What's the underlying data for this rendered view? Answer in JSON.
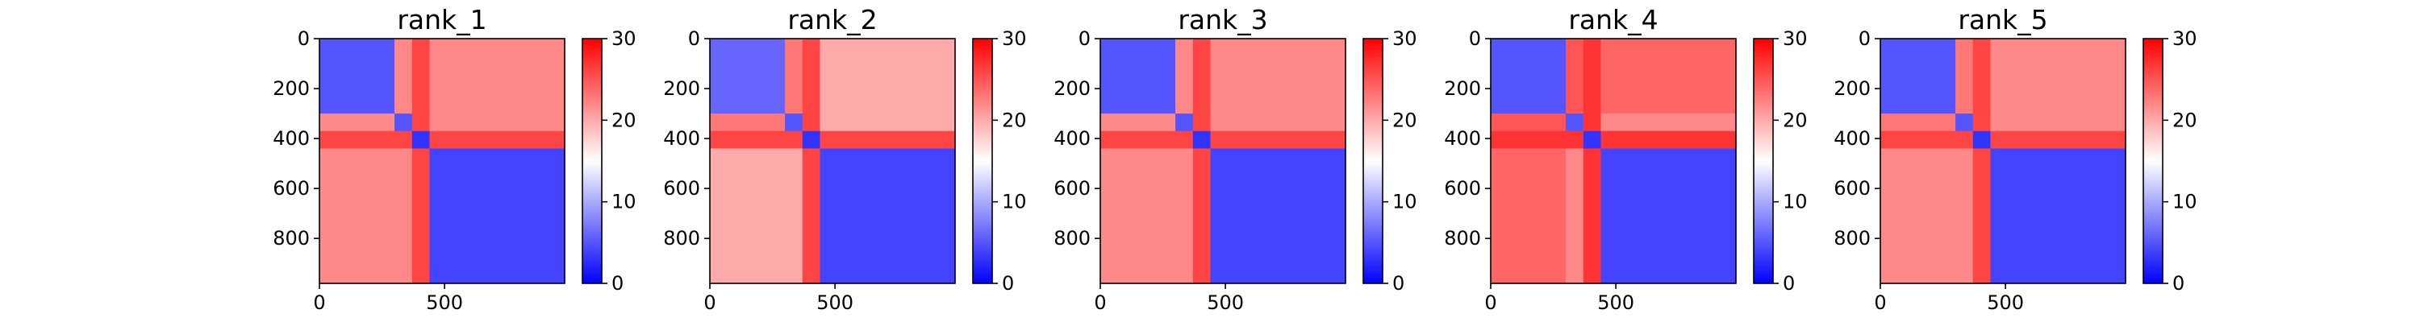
{
  "chart_data": [
    {
      "type": "heatmap",
      "title": "rank_1",
      "x_ticks": [
        "0",
        "500"
      ],
      "y_ticks": [
        "0",
        "200",
        "400",
        "600",
        "800"
      ],
      "colorbar_ticks": [
        "0",
        "10",
        "20",
        "30"
      ],
      "extent": {
        "x": [
          0,
          980
        ],
        "y": [
          980,
          0
        ]
      },
      "vmin": 0,
      "vmax": 30,
      "colormap": [
        "#0000ff",
        "#ffffff",
        "#ff0000"
      ],
      "blocks": {
        "segments": [
          0,
          300,
          370,
          440,
          980
        ],
        "values": [
          [
            5,
            22,
            26,
            22,
            20
          ],
          [
            22,
            5,
            26,
            22,
            8
          ],
          [
            26,
            26,
            3,
            26,
            26
          ],
          [
            22,
            22,
            26,
            4,
            22
          ],
          [
            20,
            8,
            26,
            22,
            6
          ]
        ]
      }
    },
    {
      "type": "heatmap",
      "title": "rank_2",
      "x_ticks": [
        "0",
        "500"
      ],
      "y_ticks": [
        "0",
        "200",
        "400",
        "600",
        "800"
      ],
      "colorbar_ticks": [
        "0",
        "10",
        "20",
        "30"
      ],
      "extent": {
        "x": [
          0,
          980
        ],
        "y": [
          980,
          0
        ]
      },
      "vmin": 0,
      "vmax": 30,
      "colormap": [
        "#0000ff",
        "#ffffff",
        "#ff0000"
      ],
      "blocks": {
        "segments": [
          0,
          300,
          370,
          440,
          980
        ],
        "values": [
          [
            6,
            23,
            26,
            20,
            16
          ],
          [
            23,
            5,
            26,
            20,
            7
          ],
          [
            26,
            26,
            3,
            26,
            26
          ],
          [
            20,
            20,
            26,
            4,
            22
          ],
          [
            16,
            7,
            26,
            22,
            6
          ]
        ]
      }
    },
    {
      "type": "heatmap",
      "title": "rank_3",
      "x_ticks": [
        "0",
        "500"
      ],
      "y_ticks": [
        "0",
        "200",
        "400",
        "600",
        "800"
      ],
      "colorbar_ticks": [
        "0",
        "10",
        "20",
        "30"
      ],
      "extent": {
        "x": [
          0,
          980
        ],
        "y": [
          980,
          0
        ]
      },
      "vmin": 0,
      "vmax": 30,
      "colormap": [
        "#0000ff",
        "#ffffff",
        "#ff0000"
      ],
      "blocks": {
        "segments": [
          0,
          300,
          370,
          440,
          980
        ],
        "values": [
          [
            5,
            22,
            26,
            22,
            20
          ],
          [
            22,
            5,
            26,
            22,
            8
          ],
          [
            26,
            26,
            3,
            26,
            26
          ],
          [
            22,
            22,
            26,
            4,
            22
          ],
          [
            20,
            8,
            26,
            22,
            6
          ]
        ]
      }
    },
    {
      "type": "heatmap",
      "title": "rank_4",
      "x_ticks": [
        "0",
        "500"
      ],
      "y_ticks": [
        "0",
        "200",
        "400",
        "600",
        "800"
      ],
      "colorbar_ticks": [
        "0",
        "10",
        "20",
        "30"
      ],
      "extent": {
        "x": [
          0,
          980
        ],
        "y": [
          980,
          0
        ]
      },
      "vmin": 0,
      "vmax": 30,
      "colormap": [
        "#0000ff",
        "#ffffff",
        "#ff0000"
      ],
      "blocks": {
        "segments": [
          0,
          300,
          370,
          440,
          980
        ],
        "values": [
          [
            5,
            25,
            27,
            24,
            24
          ],
          [
            25,
            5,
            27,
            22,
            8
          ],
          [
            27,
            27,
            3,
            27,
            27
          ],
          [
            24,
            22,
            27,
            4,
            24
          ],
          [
            24,
            8,
            27,
            24,
            6
          ]
        ]
      }
    },
    {
      "type": "heatmap",
      "title": "rank_5",
      "x_ticks": [
        "0",
        "500"
      ],
      "y_ticks": [
        "0",
        "200",
        "400",
        "600",
        "800"
      ],
      "colorbar_ticks": [
        "0",
        "10",
        "20",
        "30"
      ],
      "extent": {
        "x": [
          0,
          980
        ],
        "y": [
          980,
          0
        ]
      },
      "vmin": 0,
      "vmax": 30,
      "colormap": [
        "#0000ff",
        "#ffffff",
        "#ff0000"
      ],
      "blocks": {
        "segments": [
          0,
          300,
          370,
          440,
          980
        ],
        "values": [
          [
            5,
            23,
            26,
            22,
            21
          ],
          [
            23,
            5,
            26,
            22,
            8
          ],
          [
            26,
            26,
            3,
            26,
            26
          ],
          [
            22,
            22,
            26,
            4,
            22
          ],
          [
            21,
            8,
            26,
            22,
            6
          ]
        ]
      }
    }
  ]
}
